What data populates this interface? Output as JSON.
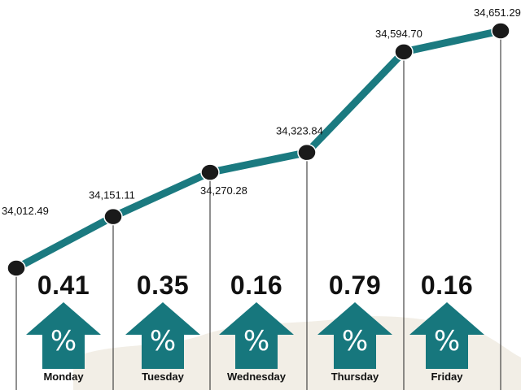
{
  "colors": {
    "line": "#1b7a80",
    "marker": "#1a1a1a",
    "arrow": "#17777d",
    "background_map": "#f2eee6"
  },
  "icons": {
    "arrow": "up-arrow-icon",
    "percent": "percent-icon"
  },
  "chart_data": {
    "type": "line",
    "categories": [
      "Monday",
      "Tuesday",
      "Wednesday",
      "Thursday",
      "Friday"
    ],
    "x": [
      "",
      "Monday",
      "Tuesday",
      "Wednesday",
      "Thursday",
      "Friday"
    ],
    "values": [
      34012.49,
      34151.11,
      34270.28,
      34323.84,
      34594.7,
      34651.29
    ],
    "value_labels": [
      "34,012.49",
      "34,151.11",
      "34,270.28",
      "34,323.84",
      "34,594.70",
      "34,651.29"
    ],
    "changes": [
      "0.41",
      "0.35",
      "0.16",
      "0.79",
      "0.16"
    ],
    "change_symbol": "%",
    "title": "",
    "xlabel": "",
    "ylabel": "",
    "grid": false,
    "legend": "none"
  }
}
